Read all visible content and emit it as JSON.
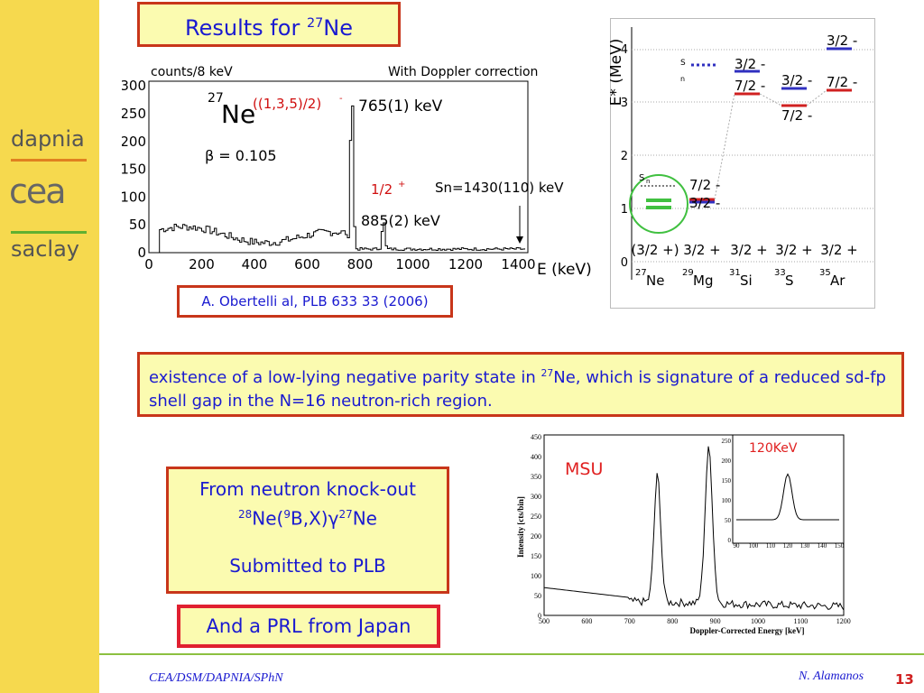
{
  "sidebar": {
    "top": "dapnia",
    "middle": "cea",
    "bottom": "saclay"
  },
  "title": {
    "text": "Results for ",
    "mass": "27",
    "element": "Ne"
  },
  "spectrum": {
    "y_label": "counts/8 keV",
    "note": "With Doppler correction",
    "mass": "27",
    "nucleus": "Ne",
    "beta": "β = 0.105",
    "peak1_spin": "((1,3,5)/2)",
    "peak1_parity": "-",
    "peak1_energy": "765(1) keV",
    "peak2_spin": "1/2",
    "peak2_parity": "+",
    "peak2_energy": "885(2) keV",
    "separation": "Sn=1430(110) keV",
    "x_label": "E (keV)",
    "xticks": [
      "0",
      "200",
      "400",
      "600",
      "800",
      "1000",
      "1200",
      "1400"
    ],
    "yticks": [
      "0",
      "50",
      "100",
      "150",
      "200",
      "250",
      "300"
    ]
  },
  "reference": "A. Obertelli al, PLB 633 33 (2006)",
  "level_scheme": {
    "y_label": "E* (MeV)",
    "yticks": [
      "0",
      "1",
      "2",
      "3",
      "4"
    ],
    "sn_label": "S",
    "sn_sub": "n",
    "nuclei": [
      {
        "mass": "27",
        "symbol": "Ne",
        "ground": "(3/2 +)"
      },
      {
        "mass": "29",
        "symbol": "Mg",
        "ground": "3/2 +"
      },
      {
        "mass": "31",
        "symbol": "Si",
        "ground": "3/2 +"
      },
      {
        "mass": "33",
        "symbol": "S",
        "ground": "3/2 +"
      },
      {
        "mass": "35",
        "symbol": "Ar",
        "ground": "3/2 +"
      }
    ],
    "states": {
      "three_half": "3/2 -",
      "seven_half": "7/2 -"
    }
  },
  "statement": {
    "before": "existence of a low-lying negative parity state in ",
    "mass": "27",
    "after": "Ne, which is signature of a reduced sd-fp shell gap in the N=16 neutron-rich region."
  },
  "knockout": {
    "line1": "From neutron knock-out",
    "m1": "28",
    "t1": "Ne(",
    "m2": "9",
    "t2": "B,X)",
    "gamma": "γ",
    "m3": "27",
    "t3": "Ne",
    "line3": "Submitted to PLB"
  },
  "prl": "And a PRL from Japan",
  "msu": {
    "label": "MSU",
    "y_label": "Intensity [cts/bin]",
    "x_label": "Doppler-Corrected Energy [keV]",
    "yticks": [
      "0",
      "50",
      "100",
      "150",
      "200",
      "250",
      "300",
      "350",
      "400",
      "450"
    ],
    "xticks": [
      "500",
      "600",
      "700",
      "800",
      "900",
      "1000",
      "1100",
      "1200"
    ],
    "inset_label": "120KeV",
    "inset_yticks": [
      "0",
      "50",
      "100",
      "150",
      "200",
      "250"
    ],
    "inset_xticks": [
      "90",
      "100",
      "110",
      "120",
      "130",
      "140",
      "150"
    ]
  },
  "footer": {
    "left": "CEA/DSM/DAPNIA/SPhN",
    "author": "N. Alamanos",
    "page": "13"
  }
}
